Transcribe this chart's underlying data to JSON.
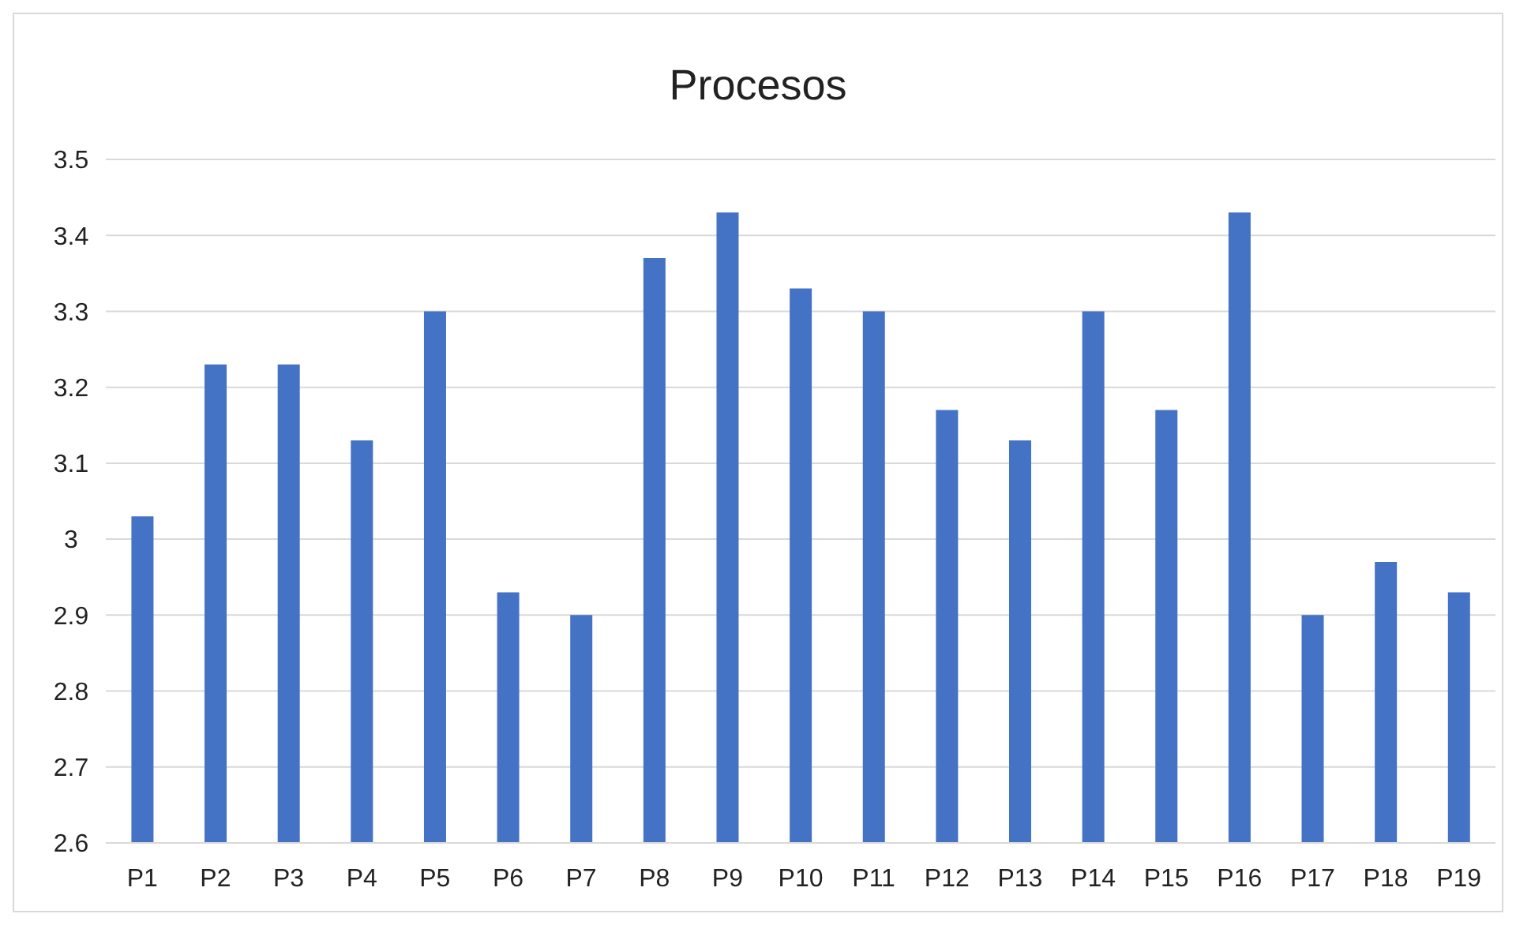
{
  "chart_data": {
    "type": "bar",
    "title": "Procesos",
    "categories": [
      "P1",
      "P2",
      "P3",
      "P4",
      "P5",
      "P6",
      "P7",
      "P8",
      "P9",
      "P10",
      "P11",
      "P12",
      "P13",
      "P14",
      "P15",
      "P16",
      "P17",
      "P18",
      "P19"
    ],
    "values": [
      3.03,
      3.23,
      3.23,
      3.13,
      3.3,
      2.93,
      2.9,
      3.37,
      3.43,
      3.33,
      3.3,
      3.17,
      3.13,
      3.3,
      3.17,
      3.43,
      2.9,
      2.97,
      2.93
    ],
    "color": "#4472c4",
    "ylim": [
      2.6,
      3.5
    ],
    "yticks": [
      2.6,
      2.7,
      2.8,
      2.9,
      3,
      3.1,
      3.2,
      3.3,
      3.4,
      3.5
    ],
    "grid": "y",
    "legend": false
  }
}
